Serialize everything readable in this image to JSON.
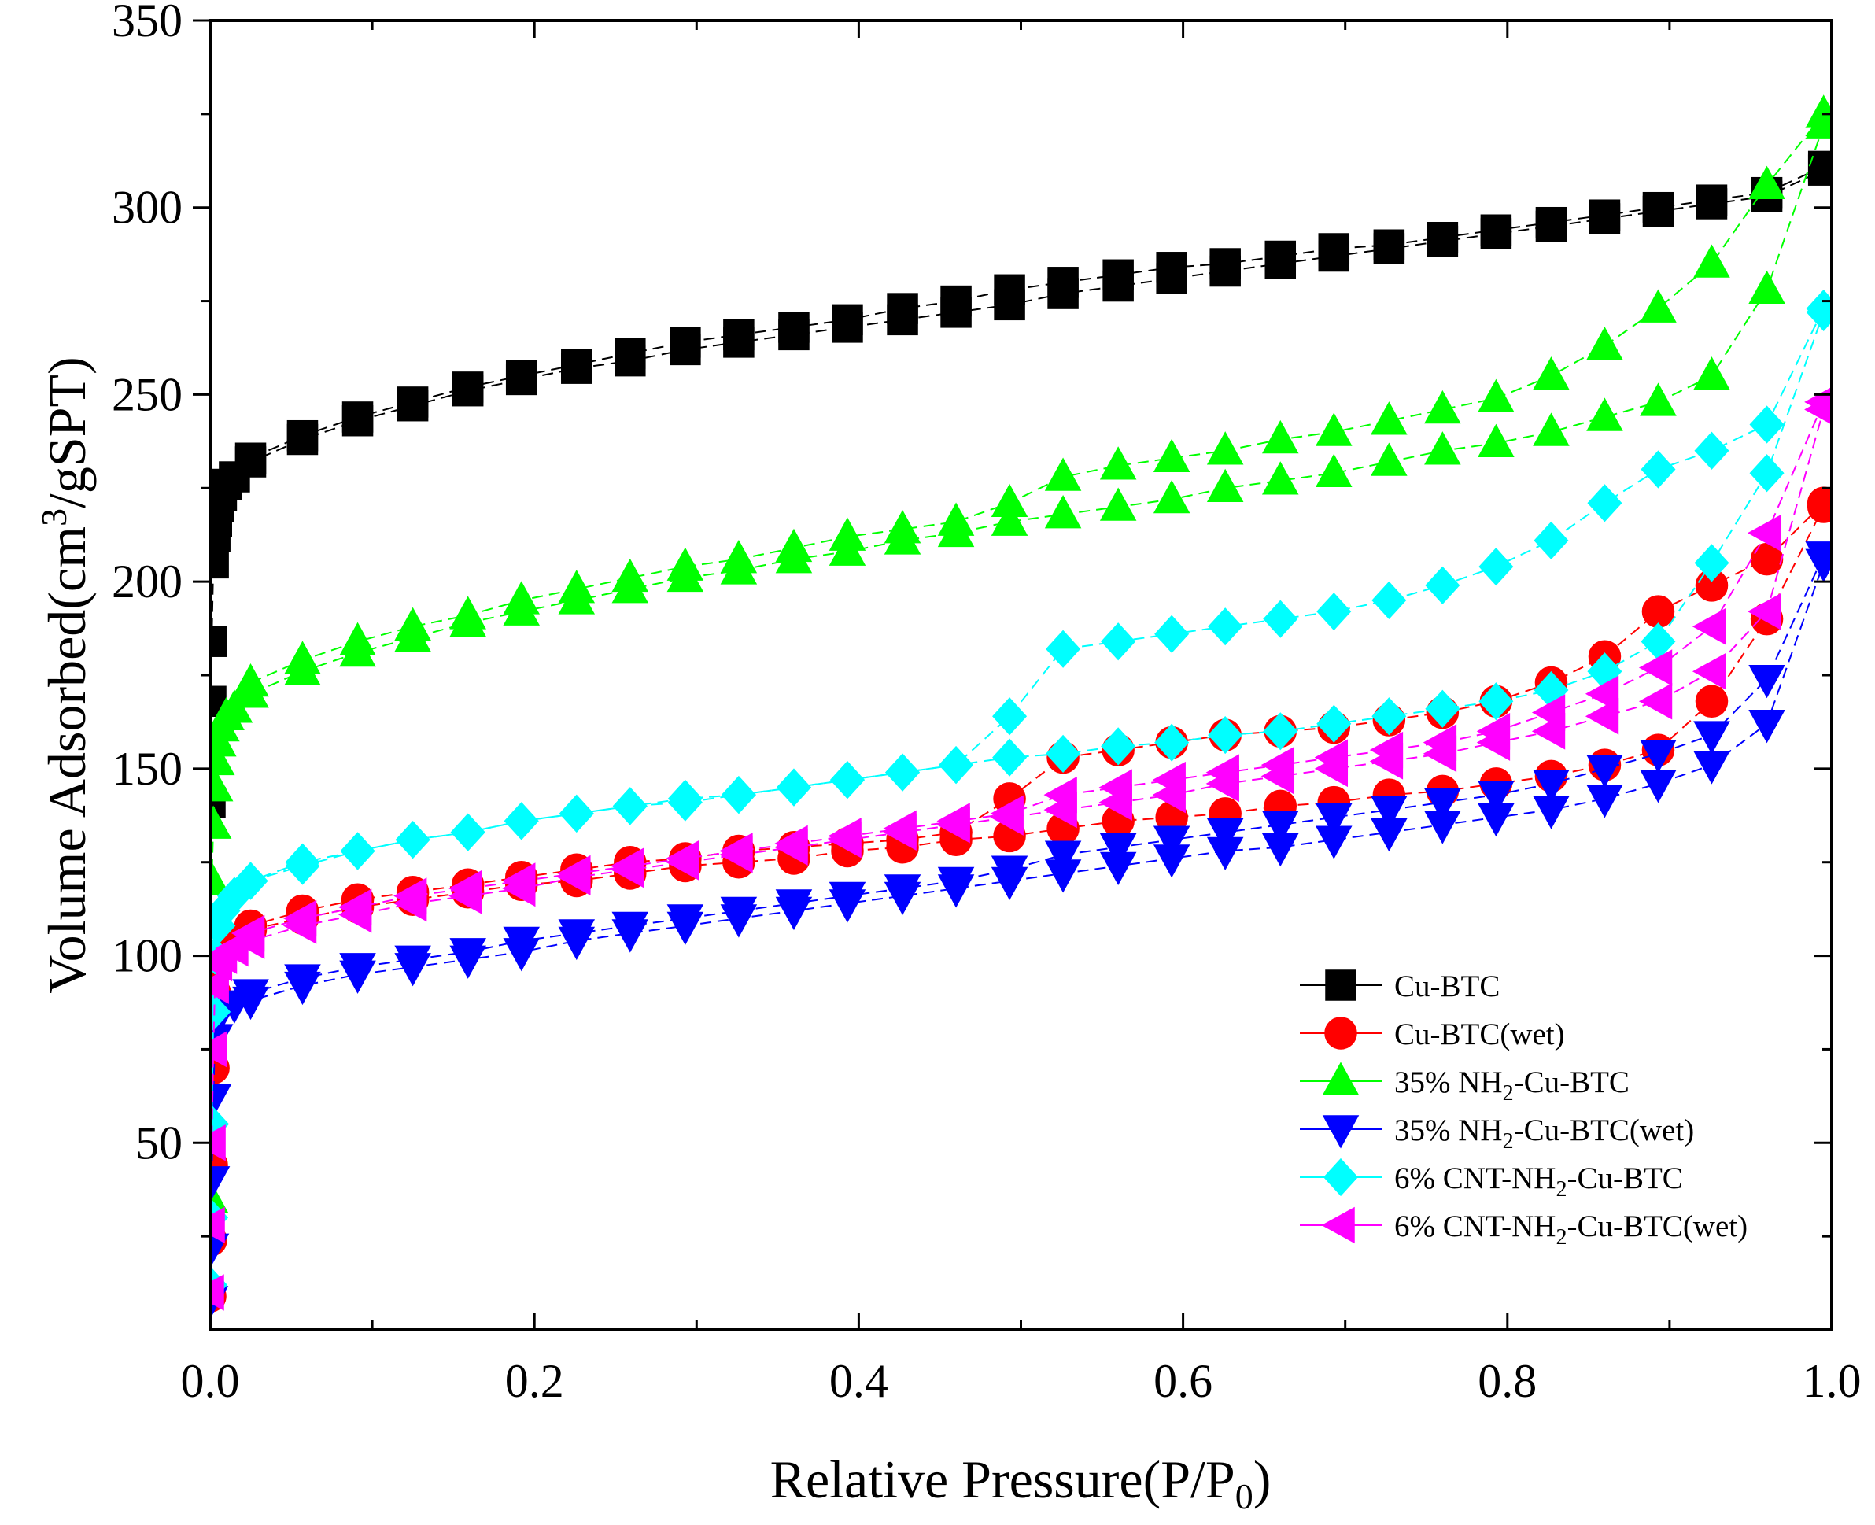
{
  "chart_data": {
    "type": "line",
    "xlabel": "Relative Pressure(P/P",
    "xlabel_sub": "0",
    "xlabel_end": ")",
    "ylabel": "Volume Adsorbed(cm",
    "ylabel_sup": "3",
    "ylabel_end": "/gSPT)",
    "xlim": [
      0,
      1.0
    ],
    "ylim": [
      0,
      350
    ],
    "x_ticks": [
      0.0,
      0.2,
      0.4,
      0.6,
      0.8,
      1.0
    ],
    "x_tick_labels": [
      "0.0",
      "0.2",
      "0.4",
      "0.6",
      "0.8",
      "1.0"
    ],
    "y_ticks": [
      50,
      100,
      150,
      200,
      250,
      300,
      350
    ],
    "y_tick_labels": [
      "50",
      "100",
      "150",
      "200",
      "250",
      "300",
      "350"
    ],
    "grid": false,
    "legend_position": "bottom-right",
    "series": [
      {
        "name": "Cu-BTC",
        "legend": [
          "Cu-BTC"
        ],
        "color": "#000000",
        "marker": "square",
        "adsorption": {
          "x": [
            0.0,
            0.0005,
            0.001,
            0.002,
            0.003,
            0.004,
            0.005,
            0.007,
            0.01,
            0.015,
            0.025,
            0.057,
            0.091,
            0.125,
            0.159,
            0.192,
            0.226,
            0.259,
            0.293,
            0.326,
            0.36,
            0.393,
            0.427,
            0.46,
            0.493,
            0.526,
            0.56,
            0.593,
            0.626,
            0.66,
            0.693,
            0.727,
            0.76,
            0.793,
            0.827,
            0.86,
            0.893,
            0.926,
            0.96,
            0.995
          ],
          "y": [
            141,
            168,
            184,
            205,
            212,
            216,
            220,
            223,
            226,
            228,
            232,
            238,
            243,
            247,
            251,
            254,
            257,
            259,
            262,
            264,
            266,
            268,
            270,
            272,
            274,
            277,
            279,
            281,
            283,
            285,
            287,
            289,
            291,
            293,
            295,
            297,
            299,
            301,
            303,
            310
          ]
        },
        "desorption": {
          "x": [
            0.995,
            0.96,
            0.926,
            0.893,
            0.86,
            0.827,
            0.793,
            0.76,
            0.727,
            0.693,
            0.66,
            0.626,
            0.593,
            0.56,
            0.526,
            0.493,
            0.46,
            0.427,
            0.393,
            0.36,
            0.326,
            0.293,
            0.259,
            0.226,
            0.192,
            0.159,
            0.125,
            0.091,
            0.057,
            0.025
          ],
          "y": [
            311,
            304,
            302,
            300,
            298,
            296,
            294,
            292,
            290,
            289,
            287,
            285,
            284,
            282,
            280,
            278,
            275,
            273,
            270,
            268,
            266,
            264,
            261,
            258,
            255,
            252,
            248,
            244,
            239,
            233
          ]
        }
      },
      {
        "name": "Cu-BTC(wet)",
        "legend": [
          "Cu-BTC(wet)"
        ],
        "color": "#ff0000",
        "marker": "circle",
        "adsorption": {
          "x": [
            0.0,
            0.0005,
            0.001,
            0.002,
            0.003,
            0.005,
            0.008,
            0.015,
            0.025,
            0.057,
            0.091,
            0.125,
            0.159,
            0.192,
            0.226,
            0.259,
            0.293,
            0.326,
            0.36,
            0.393,
            0.427,
            0.46,
            0.493,
            0.526,
            0.56,
            0.593,
            0.626,
            0.66,
            0.693,
            0.727,
            0.76,
            0.793,
            0.827,
            0.86,
            0.893,
            0.926,
            0.96,
            0.995
          ],
          "y": [
            9,
            24,
            44,
            70,
            90,
            98,
            101,
            104,
            107,
            110,
            113,
            115,
            117,
            119,
            120,
            122,
            124,
            125,
            126,
            128,
            129,
            131,
            132,
            134,
            136,
            137,
            138,
            140,
            141,
            143,
            144,
            146,
            148,
            151,
            155,
            168,
            190,
            220
          ]
        },
        "desorption": {
          "x": [
            0.995,
            0.96,
            0.926,
            0.893,
            0.86,
            0.827,
            0.793,
            0.76,
            0.727,
            0.693,
            0.66,
            0.626,
            0.593,
            0.56,
            0.526,
            0.493,
            0.46,
            0.427,
            0.393,
            0.36,
            0.326,
            0.293,
            0.259,
            0.226,
            0.192,
            0.159,
            0.125,
            0.091,
            0.057,
            0.025
          ],
          "y": [
            221,
            206,
            199,
            192,
            180,
            173,
            168,
            165,
            163,
            161,
            160,
            159,
            157,
            155,
            153,
            142,
            133,
            131,
            130,
            129,
            128,
            126,
            125,
            123,
            121,
            119,
            117,
            115,
            112,
            108
          ]
        }
      },
      {
        "name": "35% NH2-Cu-BTC",
        "legend": [
          "35% NH",
          "2",
          "-Cu-BTC"
        ],
        "color": "#00ff00",
        "marker": "triangle-up",
        "adsorption": {
          "x": [
            0.0,
            0.0005,
            0.001,
            0.002,
            0.003,
            0.004,
            0.005,
            0.007,
            0.01,
            0.015,
            0.025,
            0.057,
            0.091,
            0.125,
            0.159,
            0.192,
            0.226,
            0.259,
            0.293,
            0.326,
            0.36,
            0.393,
            0.427,
            0.46,
            0.493,
            0.526,
            0.56,
            0.593,
            0.626,
            0.66,
            0.693,
            0.727,
            0.76,
            0.793,
            0.827,
            0.86,
            0.893,
            0.926,
            0.96,
            0.995
          ],
          "y": [
            35,
            100,
            120,
            135,
            145,
            152,
            157,
            161,
            164,
            166,
            170,
            176,
            181,
            185,
            189,
            192,
            195,
            198,
            201,
            203,
            206,
            208,
            211,
            213,
            216,
            218,
            220,
            222,
            225,
            227,
            229,
            232,
            235,
            237,
            240,
            244,
            248,
            255,
            278,
            322
          ]
        },
        "desorption": {
          "x": [
            0.995,
            0.96,
            0.926,
            0.893,
            0.86,
            0.827,
            0.793,
            0.76,
            0.727,
            0.693,
            0.66,
            0.626,
            0.593,
            0.56,
            0.526,
            0.493,
            0.46,
            0.427,
            0.393,
            0.36,
            0.326,
            0.293,
            0.259,
            0.226,
            0.192,
            0.159,
            0.125,
            0.091,
            0.057,
            0.025
          ],
          "y": [
            325,
            306,
            285,
            273,
            263,
            255,
            249,
            246,
            243,
            240,
            238,
            235,
            233,
            231,
            228,
            221,
            216,
            214,
            212,
            209,
            206,
            204,
            201,
            198,
            195,
            191,
            188,
            184,
            179,
            173
          ]
        }
      },
      {
        "name": "35% NH2-Cu-BTC(wet)",
        "legend": [
          "35% NH",
          "2",
          "-Cu-BTC(wet)"
        ],
        "color": "#0000ff",
        "marker": "triangle-down",
        "adsorption": {
          "x": [
            0.0,
            0.0005,
            0.001,
            0.002,
            0.003,
            0.005,
            0.008,
            0.015,
            0.025,
            0.057,
            0.091,
            0.125,
            0.159,
            0.192,
            0.226,
            0.259,
            0.293,
            0.326,
            0.36,
            0.393,
            0.427,
            0.46,
            0.493,
            0.526,
            0.56,
            0.593,
            0.626,
            0.66,
            0.693,
            0.727,
            0.76,
            0.793,
            0.827,
            0.86,
            0.893,
            0.926,
            0.96,
            0.995
          ],
          "y": [
            8,
            22,
            40,
            62,
            78,
            84,
            86,
            87,
            88,
            92,
            95,
            97,
            99,
            101,
            104,
            106,
            108,
            110,
            112,
            114,
            116,
            118,
            120,
            122,
            124,
            126,
            128,
            129,
            131,
            133,
            135,
            137,
            139,
            142,
            146,
            151,
            162,
            205
          ]
        },
        "desorption": {
          "x": [
            0.995,
            0.96,
            0.926,
            0.893,
            0.86,
            0.827,
            0.793,
            0.76,
            0.727,
            0.693,
            0.66,
            0.626,
            0.593,
            0.56,
            0.526,
            0.493,
            0.46,
            0.427,
            0.393,
            0.36,
            0.326,
            0.293,
            0.259,
            0.226,
            0.192,
            0.159,
            0.125,
            0.091,
            0.057,
            0.025
          ],
          "y": [
            207,
            174,
            159,
            154,
            150,
            146,
            143,
            141,
            139,
            137,
            135,
            133,
            131,
            129,
            127,
            123,
            120,
            118,
            116,
            114,
            112,
            110,
            108,
            106,
            104,
            101,
            99,
            97,
            94,
            90
          ]
        }
      },
      {
        "name": "6% CNT-NH2-Cu-BTC",
        "legend": [
          "6% CNT-NH",
          "2",
          "-Cu-BTC"
        ],
        "color": "#00ffff",
        "marker": "diamond",
        "adsorption": {
          "x": [
            0.0,
            0.0005,
            0.001,
            0.002,
            0.003,
            0.005,
            0.008,
            0.015,
            0.025,
            0.057,
            0.091,
            0.125,
            0.159,
            0.192,
            0.226,
            0.259,
            0.293,
            0.326,
            0.36,
            0.393,
            0.427,
            0.46,
            0.493,
            0.526,
            0.56,
            0.593,
            0.626,
            0.66,
            0.693,
            0.727,
            0.76,
            0.793,
            0.827,
            0.86,
            0.893,
            0.926,
            0.96,
            0.995
          ],
          "y": [
            12,
            30,
            55,
            85,
            100,
            108,
            112,
            116,
            120,
            124,
            128,
            131,
            133,
            136,
            138,
            140,
            142,
            143,
            145,
            147,
            149,
            151,
            153,
            154,
            156,
            157,
            159,
            160,
            162,
            164,
            166,
            168,
            171,
            176,
            184,
            205,
            229,
            272
          ]
        },
        "desorption": {
          "x": [
            0.995,
            0.96,
            0.926,
            0.893,
            0.86,
            0.827,
            0.793,
            0.76,
            0.727,
            0.693,
            0.66,
            0.626,
            0.593,
            0.56,
            0.526,
            0.493,
            0.46,
            0.427,
            0.393,
            0.36,
            0.326,
            0.293,
            0.259,
            0.226,
            0.192,
            0.159,
            0.125,
            0.091,
            0.057,
            0.025
          ],
          "y": [
            273,
            242,
            235,
            230,
            221,
            211,
            204,
            199,
            195,
            192,
            190,
            188,
            186,
            184,
            182,
            164,
            151,
            149,
            147,
            145,
            143,
            141,
            140,
            138,
            136,
            133,
            131,
            128,
            125,
            120
          ]
        }
      },
      {
        "name": "6% CNT-NH2-Cu-BTC(wet)",
        "legend": [
          "6% CNT-NH",
          "2",
          "-Cu-BTC(wet)"
        ],
        "color": "#ff00ff",
        "marker": "triangle-left",
        "adsorption": {
          "x": [
            0.0,
            0.0005,
            0.001,
            0.002,
            0.003,
            0.005,
            0.008,
            0.015,
            0.025,
            0.057,
            0.091,
            0.125,
            0.159,
            0.192,
            0.226,
            0.259,
            0.293,
            0.326,
            0.36,
            0.393,
            0.427,
            0.46,
            0.493,
            0.526,
            0.56,
            0.593,
            0.626,
            0.66,
            0.693,
            0.727,
            0.76,
            0.793,
            0.827,
            0.86,
            0.893,
            0.926,
            0.96,
            0.995
          ],
          "y": [
            10,
            28,
            50,
            75,
            92,
            98,
            100,
            102,
            104,
            108,
            111,
            114,
            116,
            118,
            121,
            123,
            125,
            127,
            129,
            131,
            133,
            135,
            137,
            139,
            141,
            143,
            146,
            148,
            150,
            152,
            154,
            157,
            160,
            164,
            168,
            176,
            192,
            246
          ]
        },
        "desorption": {
          "x": [
            0.995,
            0.96,
            0.926,
            0.893,
            0.86,
            0.827,
            0.793,
            0.76,
            0.727,
            0.693,
            0.66,
            0.626,
            0.593,
            0.56,
            0.526,
            0.493,
            0.46,
            0.427,
            0.393,
            0.36,
            0.326,
            0.293,
            0.259,
            0.226,
            0.192,
            0.159,
            0.125,
            0.091,
            0.057,
            0.025
          ],
          "y": [
            248,
            213,
            188,
            177,
            170,
            165,
            160,
            157,
            155,
            153,
            151,
            149,
            147,
            145,
            143,
            138,
            136,
            134,
            132,
            130,
            128,
            126,
            124,
            122,
            120,
            118,
            116,
            113,
            110,
            106
          ]
        }
      }
    ]
  }
}
